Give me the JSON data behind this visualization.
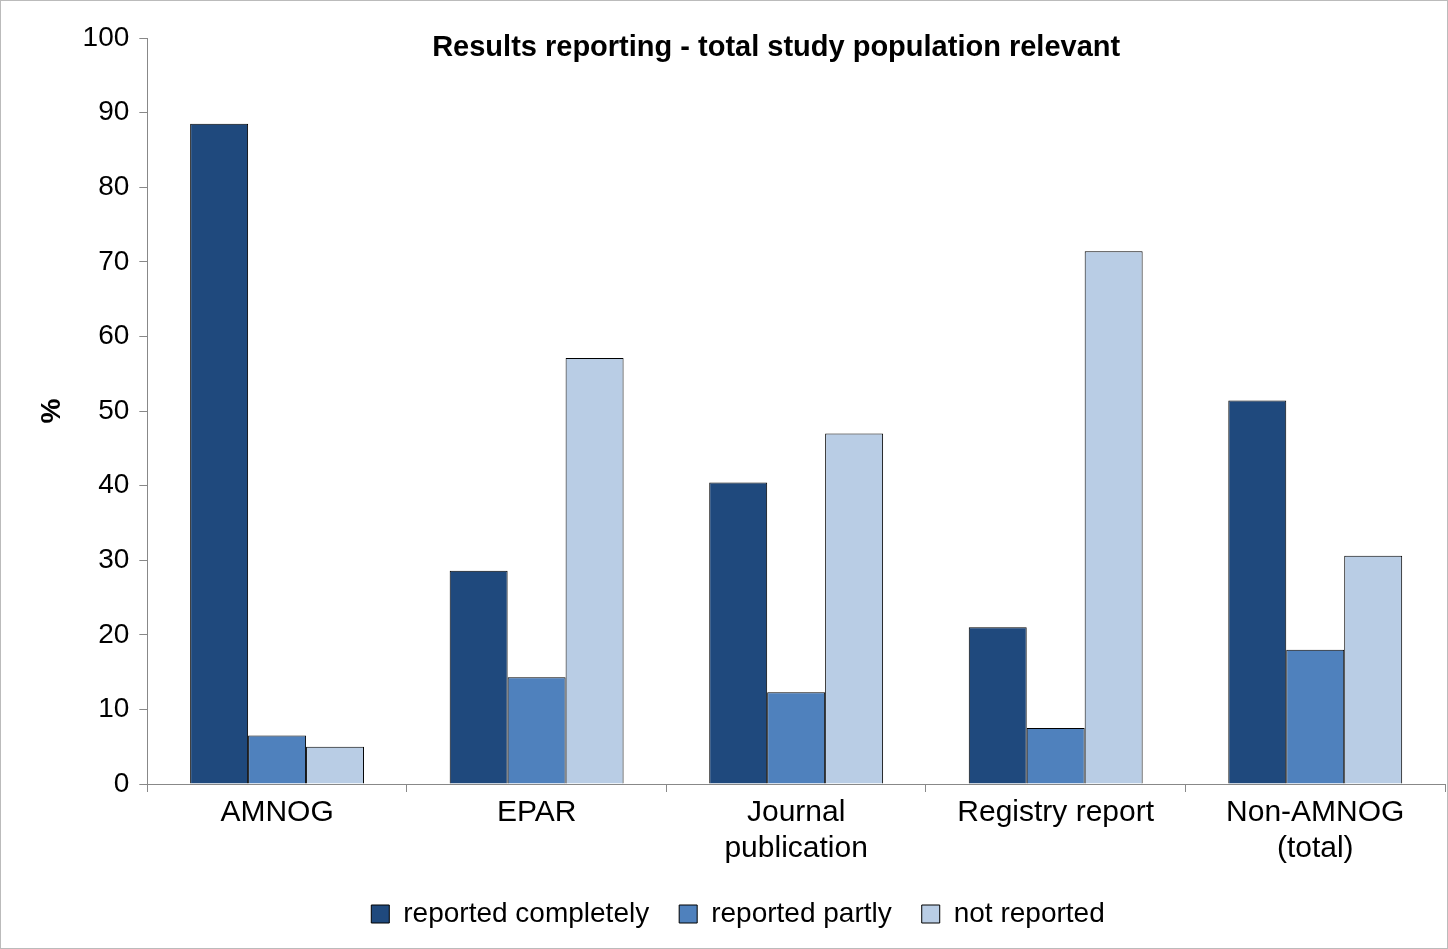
{
  "chart_data": {
    "type": "bar",
    "title": "Results reporting - total study population relevant",
    "ylabel": "%",
    "categories": [
      "AMNOG",
      "EPAR",
      "Journal publication",
      "Registry report",
      "Non-AMNOG (total)"
    ],
    "series": [
      {
        "name": "reported completely",
        "color": "#1f497d",
        "values": [
          88.5,
          28.6,
          40.4,
          21,
          51.4
        ]
      },
      {
        "name": "reported partly",
        "color": "#4f81bd",
        "values": [
          6.5,
          14.3,
          12.3,
          7.5,
          18
        ]
      },
      {
        "name": "not reported",
        "color": "#b9cde5",
        "values": [
          5,
          57.1,
          47,
          71.4,
          30.6
        ]
      }
    ],
    "ylim": [
      0,
      100
    ],
    "yticks": [
      0,
      10,
      20,
      30,
      40,
      50,
      60,
      70,
      80,
      90,
      100
    ],
    "grid": false,
    "legend": "bottom"
  }
}
